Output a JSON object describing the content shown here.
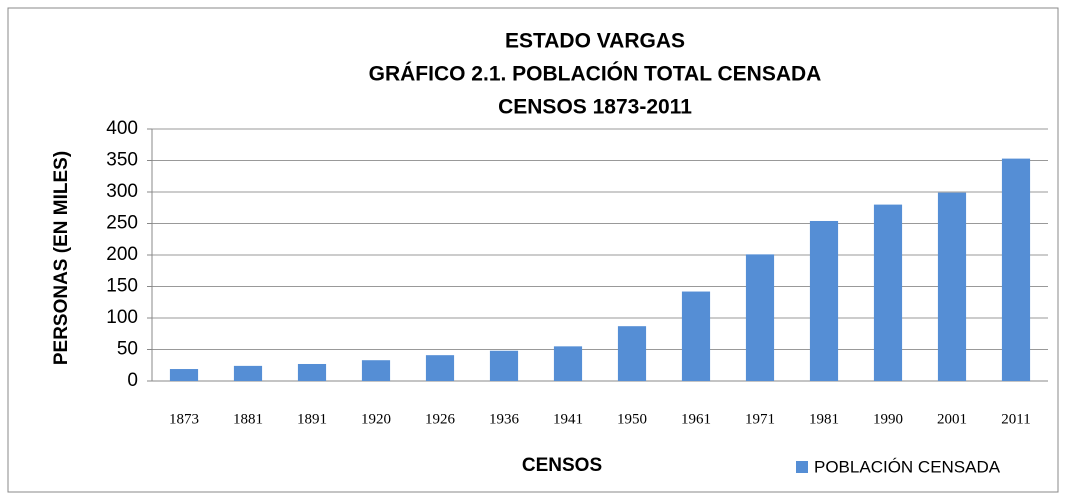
{
  "chart_data": {
    "type": "bar",
    "title": [
      "ESTADO VARGAS",
      "GRÁFICO 2.1. POBLACIÓN TOTAL CENSADA",
      "CENSOS 1873-2011"
    ],
    "x_label": "CENSOS",
    "y_label": "PERSONAS (EN MILES)",
    "categories": [
      "1873",
      "1881",
      "1891",
      "1920",
      "1926",
      "1936",
      "1941",
      "1950",
      "1961",
      "1971",
      "1981",
      "1990",
      "2001",
      "2011"
    ],
    "series": [
      {
        "name": "POBLACIÓN CENSADA",
        "color": "#558ed5",
        "values": [
          19,
          24,
          27,
          33,
          41,
          48,
          55,
          87,
          142,
          201,
          254,
          280,
          299,
          353
        ]
      }
    ],
    "ylim": [
      0,
      400
    ],
    "yticks": [
      0,
      50,
      100,
      150,
      200,
      250,
      300,
      350,
      400
    ],
    "grid": true,
    "legend": "bottom-right"
  }
}
